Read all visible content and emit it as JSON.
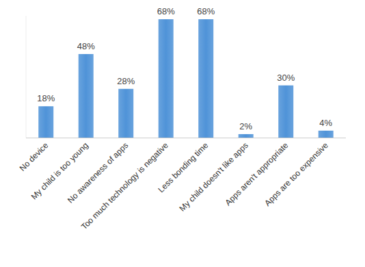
{
  "chart_data": {
    "type": "bar",
    "categories": [
      "No device",
      "My child is too young",
      "No awareness of apps",
      "Too much technology is negative",
      "Less bonding time",
      "My child doesn't like apps",
      "Apps aren't appropriate",
      "Apps are too expensive"
    ],
    "values": [
      18,
      48,
      28,
      68,
      68,
      2,
      30,
      4
    ],
    "value_labels": [
      "18%",
      "48%",
      "28%",
      "68%",
      "68%",
      "2%",
      "30%",
      "4%"
    ],
    "color": "#4f93d8",
    "ylim": [
      0,
      70
    ],
    "grid": false,
    "data_labels": true,
    "tick_labels": "x"
  }
}
